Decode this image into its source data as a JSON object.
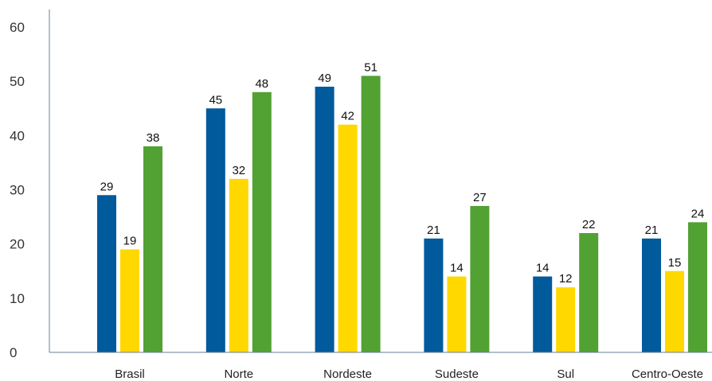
{
  "chart_data": {
    "type": "bar",
    "title": "",
    "xlabel": "",
    "ylabel": "",
    "ylim": [
      0,
      60
    ],
    "yticks": [
      0,
      10,
      20,
      30,
      40,
      50,
      60
    ],
    "grid": false,
    "legend": "none",
    "categories": [
      "Brasil",
      "Norte",
      "Nordeste",
      "Sudeste",
      "Sul",
      "Centro-Oeste"
    ],
    "series": [
      {
        "color": "#005a9c",
        "values": [
          29,
          45,
          49,
          21,
          14,
          21
        ]
      },
      {
        "color": "#ffd800",
        "values": [
          19,
          32,
          42,
          14,
          12,
          15
        ]
      },
      {
        "color": "#52a133",
        "values": [
          38,
          48,
          51,
          27,
          22,
          24
        ]
      }
    ]
  }
}
